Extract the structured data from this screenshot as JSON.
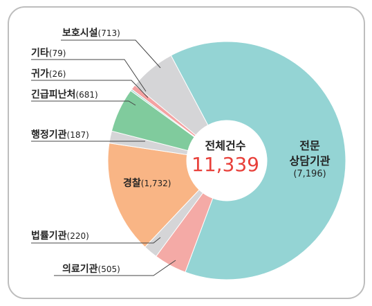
{
  "chart_data": {
    "type": "donut",
    "categories": [
      "전문\n상담기관",
      "의료기관",
      "법률기관",
      "경찰",
      "행정기관",
      "긴급피난처",
      "귀가",
      "기타",
      "보호시설"
    ],
    "values": [
      7196,
      505,
      220,
      1732,
      187,
      681,
      26,
      79,
      713
    ],
    "value_labels": [
      "(7,196)",
      "(505)",
      "(220)",
      "(1,732)",
      "(187)",
      "(681)",
      "(26)",
      "(79)",
      "(713)"
    ],
    "colors": [
      "#94d4d4",
      "#f4aaa6",
      "#d5d5d7",
      "#f9b585",
      "#d5d5d7",
      "#80cb9d",
      "#a9dad2",
      "#f4a2a2",
      "#d5d5d7"
    ],
    "center_label": "전체건수",
    "total": {
      "value": 11339,
      "label": "11,339"
    }
  }
}
